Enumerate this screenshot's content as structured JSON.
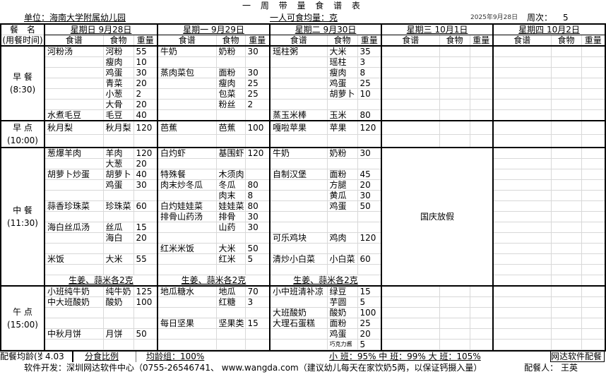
{
  "title": "一 周 带 量 食 谱 表",
  "unit": "单位：海南大学附属幼儿园",
  "per_person": "一人可食均量：克",
  "date": "2025年9月28日",
  "week_label": "周次：",
  "week_no": "5",
  "header": {
    "meal_name": "餐　名",
    "meal_time": "(用餐时间)",
    "col_recipe": "食谱",
    "col_food": "食物",
    "col_weight": "重量"
  },
  "days": [
    "星期日 9月28日",
    "星期一 9月29日",
    "星期二 9月30日",
    "星期三 10月1日",
    "星期四 10月2日"
  ],
  "holiday_text": "国庆放假",
  "ginger_note": "生姜、蒜米各2克",
  "meals": [
    {
      "name": "早 餐",
      "time": "(8:30)",
      "rows": [
        [
          [
            "河粉汤",
            "河粉",
            "55"
          ],
          [
            "牛奶",
            "奶粉",
            "30"
          ],
          [
            "瑶柱粥",
            "大米",
            "35"
          ]
        ],
        [
          [
            "",
            "瘦肉",
            "10"
          ],
          [
            "",
            "",
            ""
          ],
          [
            "",
            "瑶柱",
            "3"
          ]
        ],
        [
          [
            "",
            "鸡蛋",
            "30"
          ],
          [
            "蒸肉菜包",
            "面粉",
            "30"
          ],
          [
            "",
            "瘦肉",
            "8"
          ]
        ],
        [
          [
            "",
            "青菜",
            "20"
          ],
          [
            "",
            "瘦肉",
            "25"
          ],
          [
            "",
            "鸡蛋",
            "25"
          ]
        ],
        [
          [
            "",
            "小葱",
            "2"
          ],
          [
            "",
            "包菜",
            "25"
          ],
          [
            "",
            "胡萝卜",
            "10"
          ]
        ],
        [
          [
            "",
            "大骨",
            "20"
          ],
          [
            "",
            "粉丝",
            "2"
          ],
          [
            "",
            "",
            ""
          ]
        ],
        [
          [
            "水煮毛豆",
            "毛豆",
            "40"
          ],
          [
            "",
            "",
            ""
          ],
          [
            "蒸玉米棒",
            "玉米",
            "80"
          ]
        ]
      ]
    },
    {
      "name": "早 点",
      "time": "(10:00)",
      "rows": [
        [
          [
            "秋月梨",
            "秋月梨",
            "120"
          ],
          [
            "芭蕉",
            "芭蕉",
            "100"
          ],
          [
            "嘎啦苹果",
            "苹果",
            "120"
          ]
        ],
        [
          [
            "",
            "",
            ""
          ],
          [
            "",
            "",
            ""
          ],
          [
            "",
            "",
            ""
          ]
        ]
      ]
    },
    {
      "name": "中 餐",
      "time": "(11:30)",
      "holiday": true,
      "ginger": true,
      "rows": [
        [
          [
            "葱爆羊肉",
            "羊肉",
            "120"
          ],
          [
            "白灼虾",
            "基围虾",
            "120"
          ],
          [
            "牛奶",
            "奶粉",
            "30"
          ]
        ],
        [
          [
            "",
            "大葱",
            "20"
          ],
          [
            "",
            "",
            ""
          ],
          [
            "",
            "",
            ""
          ]
        ],
        [
          [
            "胡萝卜炒蛋",
            "胡萝卜",
            "40"
          ],
          [
            "特殊餐",
            "木须肉",
            ""
          ],
          [
            "自制汉堡",
            "面粉",
            "45"
          ]
        ],
        [
          [
            "",
            "鸡蛋",
            "30"
          ],
          [
            "肉末炒冬瓜",
            "冬瓜",
            "80"
          ],
          [
            "",
            "方腿",
            "20"
          ]
        ],
        [
          [
            "",
            "",
            ""
          ],
          [
            "",
            "肉末",
            "8"
          ],
          [
            "",
            "黄瓜",
            "30"
          ]
        ],
        [
          [
            "蒜香珍珠菜",
            "珍珠菜",
            "60"
          ],
          [
            "白灼娃娃菜",
            "娃娃菜",
            "80"
          ],
          [
            "",
            "鸡蛋",
            "50"
          ]
        ],
        [
          [
            "",
            "",
            ""
          ],
          [
            "排骨山药汤",
            "排骨",
            "30"
          ],
          [
            "",
            "",
            ""
          ]
        ],
        [
          [
            "海白丝瓜汤",
            "丝瓜",
            "15"
          ],
          [
            "",
            "山药",
            "30"
          ],
          [
            "",
            "",
            ""
          ]
        ],
        [
          [
            "",
            "海白",
            "20"
          ],
          [
            "",
            "",
            ""
          ],
          [
            "可乐鸡块",
            "鸡肉",
            "120"
          ]
        ],
        [
          [
            "",
            "",
            ""
          ],
          [
            "红米米饭",
            "大米",
            "50"
          ],
          [
            "",
            "",
            ""
          ]
        ],
        [
          [
            "米饭",
            "大米",
            "55"
          ],
          [
            "",
            "红米",
            "5"
          ],
          [
            "清炒小白菜",
            "小白菜",
            "60"
          ]
        ],
        [
          [
            "",
            "",
            ""
          ],
          [
            "",
            "",
            ""
          ],
          [
            "",
            "",
            ""
          ]
        ]
      ]
    },
    {
      "name": "午 点",
      "time": "(15:00)",
      "rows": [
        [
          [
            "小班纯牛奶",
            "纯牛奶",
            "125"
          ],
          [
            "地瓜糖水",
            "地瓜",
            "70"
          ],
          [
            "小中班清补凉",
            "绿豆",
            "15"
          ]
        ],
        [
          [
            "中大班酸奶",
            "酸奶",
            "100"
          ],
          [
            "",
            "红糖",
            "3"
          ],
          [
            "",
            "芋圆",
            "5"
          ]
        ],
        [
          [
            "",
            "",
            ""
          ],
          [
            "",
            "",
            ""
          ],
          [
            "大班酸奶",
            "酸奶",
            "100"
          ]
        ],
        [
          [
            "",
            "",
            ""
          ],
          [
            "每日坚果",
            "坚果类",
            "15"
          ],
          [
            "大理石蛋糕",
            "面粉",
            "25"
          ]
        ],
        [
          [
            "中秋月饼",
            "月饼",
            "50"
          ],
          [
            "",
            "",
            ""
          ],
          [
            "",
            "鸡蛋",
            "20"
          ]
        ],
        [
          [
            "",
            "",
            ""
          ],
          [
            "",
            "",
            ""
          ],
          [
            "",
            "巧克力酱",
            "5"
          ]
        ]
      ]
    }
  ],
  "summary": {
    "avg_age_label": "配餐均龄(岁)",
    "avg_age": "4.03",
    "ratio_label": "分食比例",
    "group": "均龄组：100%",
    "classes": "小 班：95%   中 班：99%   大 班：105%",
    "brand": "网达软件配餐"
  },
  "footer": {
    "dev": "软件开发：深圳网达软件中心（0755-26546741、 www.wangda.com（建议幼儿每天在家饮奶5两，以保证钙摄入量）",
    "planner": "配餐人： 王英"
  }
}
